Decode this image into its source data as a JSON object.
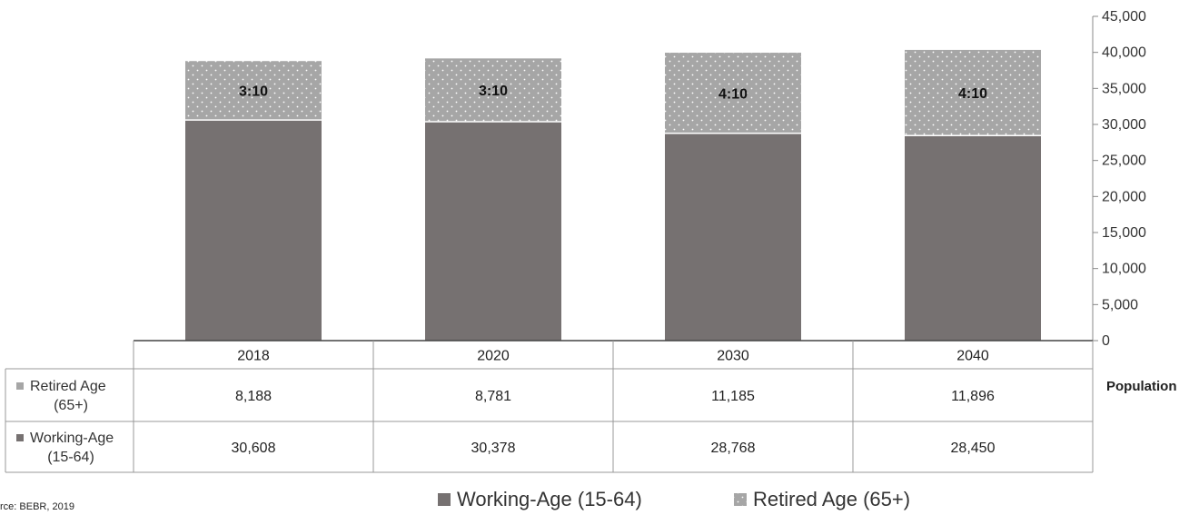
{
  "chart_data": {
    "type": "bar",
    "stacked": true,
    "categories": [
      "2018",
      "2020",
      "2030",
      "2040"
    ],
    "series": [
      {
        "name": "Working-Age (15-64)",
        "table_label": [
          "Working-Age",
          "(15-64)"
        ],
        "values": [
          30608,
          30378,
          28768,
          28450
        ],
        "display_values": [
          "30,608",
          "30,378",
          "28,768",
          "28,450"
        ],
        "color": "#767171",
        "pattern": "solid"
      },
      {
        "name": "Retired Age (65+)",
        "table_label": [
          "Retired Age",
          "(65+)"
        ],
        "values": [
          8188,
          8781,
          11185,
          11896
        ],
        "display_values": [
          "8,188",
          "8,781",
          "11,185",
          "11,896"
        ],
        "color": "#a6a6a6",
        "pattern": "white-dots"
      }
    ],
    "ratio_labels": [
      "3:10",
      "3:10",
      "4:10",
      "4:10"
    ],
    "ylim": [
      0,
      45000
    ],
    "ytick_labels": [
      "0",
      "5,000",
      "10,000",
      "15,000",
      "20,000",
      "25,000",
      "30,000",
      "35,000",
      "40,000",
      "45,000"
    ],
    "yaxis_position": "right",
    "ylabel": "Population",
    "grid": false,
    "legend_position": "bottom",
    "data_table": true
  },
  "source": "rce: BEBR, 2019"
}
